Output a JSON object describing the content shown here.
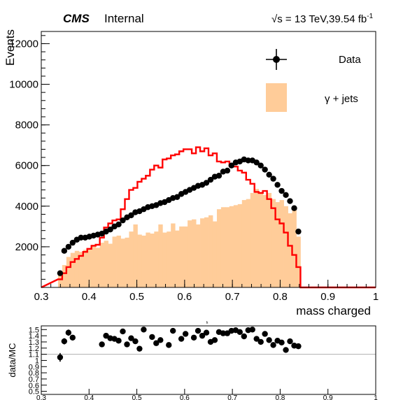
{
  "header": {
    "experiment": "CMS",
    "status": "Internal",
    "lumi": "√s = 13 TeV,39.54 fb",
    "lumi_exp": "-1"
  },
  "chart_data": [
    {
      "type": "histogram",
      "xlabel": "mass charged",
      "ylabel": "Events",
      "xlim": [
        0.3,
        1.0
      ],
      "ylim": [
        0,
        12600
      ],
      "x_ticks": [
        "0.3",
        "0.4",
        "0.5",
        "0.6",
        "0.7",
        "0.8",
        "0.9",
        "1"
      ],
      "y_ticks": [
        "2000",
        "4000",
        "6000",
        "8000",
        "10000",
        "12000"
      ],
      "bin_width": 0.00875,
      "legend": {
        "position": "top-right",
        "entries": [
          {
            "label": "Data",
            "kind": "marker"
          },
          {
            "label": "γ + jets",
            "kind": "fill",
            "color": "#ffcc99"
          }
        ]
      },
      "series": [
        {
          "name": "γ + jets",
          "kind": "filled-histogram",
          "color": "#ffcc99",
          "x": [
            0.3394,
            0.3481,
            0.3569,
            0.3656,
            0.3744,
            0.3831,
            0.3919,
            0.4006,
            0.4094,
            0.4181,
            0.4269,
            0.4356,
            0.4444,
            0.4531,
            0.4619,
            0.4706,
            0.4794,
            0.4881,
            0.4969,
            0.5056,
            0.5144,
            0.5231,
            0.5319,
            0.5406,
            0.5494,
            0.5581,
            0.5669,
            0.5756,
            0.5844,
            0.5931,
            0.6019,
            0.6106,
            0.6194,
            0.6281,
            0.6369,
            0.6456,
            0.6544,
            0.6631,
            0.6719,
            0.6806,
            0.6894,
            0.6981,
            0.7069,
            0.7156,
            0.7244,
            0.7331,
            0.7419,
            0.7506,
            0.7594,
            0.7681,
            0.7769,
            0.7856,
            0.7944,
            0.8031,
            0.8119,
            0.8206,
            0.8294,
            0.8381
          ],
          "values": [
            700,
            1100,
            1500,
            1700,
            1800,
            1750,
            1850,
            1900,
            2100,
            1950,
            2200,
            2300,
            2150,
            2500,
            2550,
            2400,
            2450,
            2750,
            3100,
            2600,
            2550,
            2700,
            2650,
            2750,
            3100,
            2700,
            2750,
            3150,
            2800,
            3000,
            3000,
            3300,
            3350,
            3100,
            3400,
            3450,
            3550,
            3250,
            3850,
            3950,
            3950,
            4000,
            4050,
            4100,
            4300,
            4350,
            4650,
            4850,
            4700,
            4550,
            4650,
            4350,
            4200,
            4300,
            4000,
            3650,
            3800,
            2500
          ]
        },
        {
          "name": "",
          "kind": "step-histogram",
          "color": "#ff0000",
          "x": [
            0.3394,
            0.3481,
            0.3569,
            0.3656,
            0.3744,
            0.3831,
            0.3919,
            0.4006,
            0.4094,
            0.4181,
            0.4269,
            0.4356,
            0.4444,
            0.4531,
            0.4619,
            0.4706,
            0.4794,
            0.4881,
            0.4969,
            0.5056,
            0.5144,
            0.5231,
            0.5319,
            0.5406,
            0.5494,
            0.5581,
            0.5669,
            0.5756,
            0.5844,
            0.5931,
            0.6019,
            0.6106,
            0.6194,
            0.6281,
            0.6369,
            0.6456,
            0.6544,
            0.6631,
            0.6719,
            0.6806,
            0.6894,
            0.6981,
            0.7069,
            0.7156,
            0.7244,
            0.7331,
            0.7419,
            0.7506,
            0.7594,
            0.7681,
            0.7769,
            0.7856,
            0.7944,
            0.8031,
            0.8119,
            0.8206,
            0.8294,
            0.8381
          ],
          "values": [
            400,
            700,
            1000,
            1250,
            1400,
            1550,
            1750,
            1900,
            2050,
            2100,
            2450,
            2950,
            3150,
            3300,
            3350,
            3850,
            4350,
            4800,
            4900,
            5200,
            5350,
            5500,
            5800,
            6000,
            5900,
            6300,
            6350,
            6500,
            6550,
            6700,
            6800,
            6800,
            6600,
            6900,
            6700,
            6850,
            6500,
            6600,
            6200,
            6150,
            6200,
            6000,
            5950,
            5750,
            5650,
            5300,
            5100,
            4700,
            4650,
            4750,
            4350,
            3900,
            3350,
            3150,
            2700,
            2050,
            1600,
            1000
          ]
        },
        {
          "name": "Data",
          "kind": "markers",
          "color": "#000000",
          "x": [
            0.3394,
            0.3481,
            0.3569,
            0.3656,
            0.3744,
            0.3831,
            0.3919,
            0.4006,
            0.4094,
            0.4181,
            0.4269,
            0.4356,
            0.4444,
            0.4531,
            0.4619,
            0.4706,
            0.4794,
            0.4881,
            0.4969,
            0.5056,
            0.5144,
            0.5231,
            0.5319,
            0.5406,
            0.5494,
            0.5581,
            0.5669,
            0.5756,
            0.5844,
            0.5931,
            0.6019,
            0.6106,
            0.6194,
            0.6281,
            0.6369,
            0.6456,
            0.6544,
            0.6631,
            0.6719,
            0.6806,
            0.6894,
            0.6981,
            0.7069,
            0.7156,
            0.7244,
            0.7331,
            0.7419,
            0.7506,
            0.7594,
            0.7681,
            0.7769,
            0.7856,
            0.7944,
            0.8031,
            0.8119,
            0.8206,
            0.8294,
            0.8381
          ],
          "values": [
            700,
            1800,
            2000,
            2200,
            2350,
            2450,
            2450,
            2500,
            2550,
            2600,
            2650,
            2750,
            2850,
            3000,
            3100,
            3300,
            3450,
            3550,
            3700,
            3750,
            3850,
            3950,
            4000,
            4050,
            4150,
            4200,
            4300,
            4400,
            4450,
            4600,
            4700,
            4800,
            4900,
            5000,
            5050,
            5150,
            5300,
            5450,
            5500,
            5700,
            5750,
            6000,
            6150,
            6200,
            6300,
            6250,
            6250,
            6150,
            6000,
            5800,
            5550,
            5350,
            5050,
            4750,
            4550,
            4250,
            3900,
            2750
          ]
        }
      ]
    },
    {
      "type": "scatter",
      "xlabel": "",
      "ylabel": "data/MC",
      "xlim": [
        0.3,
        1.0
      ],
      "ylim": [
        0.45,
        1.56
      ],
      "title_mark": "h",
      "reference_line": 1.1,
      "x_ticks": [
        "0.3",
        "0.4",
        "0.5",
        "0.6",
        "0.7",
        "0.8",
        "0.9",
        "1"
      ],
      "y_ticks": [
        "0.5",
        "0.6",
        "0.7",
        "0.8",
        "0.9",
        "1",
        "1.1",
        "1.2",
        "1.3",
        "1.4",
        "1.5"
      ],
      "series": [
        {
          "name": "",
          "x": [
            0.3394,
            0.3481,
            0.3569,
            0.3656,
            0.4269,
            0.4356,
            0.4444,
            0.4531,
            0.4619,
            0.4706,
            0.4794,
            0.4881,
            0.4969,
            0.5056,
            0.5144,
            0.5319,
            0.5406,
            0.5494,
            0.5669,
            0.5756,
            0.5931,
            0.6019,
            0.6194,
            0.6281,
            0.6369,
            0.6456,
            0.6544,
            0.6631,
            0.6719,
            0.6806,
            0.6894,
            0.6981,
            0.7069,
            0.7156,
            0.7244,
            0.7331,
            0.7419,
            0.7506,
            0.7594,
            0.7681,
            0.7769,
            0.7856,
            0.7944,
            0.8031,
            0.8119,
            0.8206,
            0.8294,
            0.8381
          ],
          "values": [
            1.05,
            1.31,
            1.45,
            1.37,
            1.26,
            1.4,
            1.36,
            1.35,
            1.32,
            1.47,
            1.26,
            1.36,
            1.31,
            1.19,
            1.5,
            1.38,
            1.28,
            1.33,
            1.25,
            1.48,
            1.35,
            1.43,
            1.37,
            1.48,
            1.4,
            1.45,
            1.3,
            1.33,
            1.46,
            1.44,
            1.44,
            1.48,
            1.49,
            1.46,
            1.39,
            1.49,
            1.5,
            1.35,
            1.3,
            1.43,
            1.33,
            1.25,
            1.32,
            1.29,
            1.17,
            1.31,
            1.24,
            1.23
          ],
          "errors": [
            0.07,
            0.05,
            0.05,
            0.04,
            0.04,
            0.04,
            0.04,
            0.04,
            0.04,
            0.04,
            0.04,
            0.04,
            0.04,
            0.04,
            0.04,
            0.04,
            0.04,
            0.04,
            0.04,
            0.04,
            0.04,
            0.04,
            0.04,
            0.04,
            0.04,
            0.04,
            0.04,
            0.04,
            0.04,
            0.04,
            0.04,
            0.04,
            0.04,
            0.04,
            0.04,
            0.04,
            0.04,
            0.04,
            0.04,
            0.04,
            0.04,
            0.04,
            0.04,
            0.04,
            0.04,
            0.04,
            0.04,
            0.04
          ]
        }
      ]
    }
  ]
}
